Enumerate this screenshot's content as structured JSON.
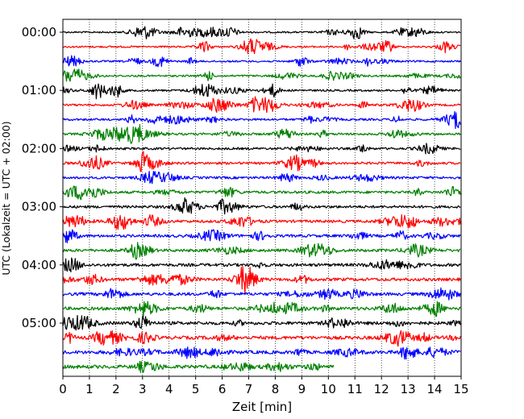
{
  "chart_data": {
    "type": "line",
    "title": "",
    "xlabel": "Zeit  [min]",
    "ylabel": "UTC (Lokalzeit = UTC + 02:00)",
    "xlim": [
      0,
      15
    ],
    "x_ticks": [
      "0",
      "1",
      "2",
      "3",
      "4",
      "5",
      "6",
      "7",
      "8",
      "9",
      "10",
      "11",
      "12",
      "13",
      "14",
      "15"
    ],
    "y_ticks": [
      "00:00",
      "01:00",
      "02:00",
      "03:00",
      "04:00",
      "05:00"
    ],
    "grid": "vertical dotted",
    "legend": "none",
    "colors": [
      "#000000",
      "#ff0000",
      "#0000ff",
      "#008000"
    ],
    "series": [
      {
        "start": "00:00",
        "end_min": 15,
        "color": "#000000"
      },
      {
        "start": "00:15",
        "end_min": 15,
        "color": "#ff0000"
      },
      {
        "start": "00:30",
        "end_min": 15,
        "color": "#0000ff"
      },
      {
        "start": "00:45",
        "end_min": 15,
        "color": "#008000"
      },
      {
        "start": "01:00",
        "end_min": 15,
        "color": "#000000"
      },
      {
        "start": "01:15",
        "end_min": 15,
        "color": "#ff0000"
      },
      {
        "start": "01:30",
        "end_min": 15,
        "color": "#0000ff"
      },
      {
        "start": "01:45",
        "end_min": 15,
        "color": "#008000"
      },
      {
        "start": "02:00",
        "end_min": 15,
        "color": "#000000"
      },
      {
        "start": "02:15",
        "end_min": 15,
        "color": "#ff0000"
      },
      {
        "start": "02:30",
        "end_min": 15,
        "color": "#0000ff"
      },
      {
        "start": "02:45",
        "end_min": 15,
        "color": "#008000"
      },
      {
        "start": "03:00",
        "end_min": 15,
        "color": "#000000"
      },
      {
        "start": "03:15",
        "end_min": 15,
        "color": "#ff0000"
      },
      {
        "start": "03:30",
        "end_min": 15,
        "color": "#0000ff"
      },
      {
        "start": "03:45",
        "end_min": 15,
        "color": "#008000"
      },
      {
        "start": "04:00",
        "end_min": 15,
        "color": "#000000"
      },
      {
        "start": "04:15",
        "end_min": 15,
        "color": "#ff0000"
      },
      {
        "start": "04:30",
        "end_min": 15,
        "color": "#0000ff"
      },
      {
        "start": "04:45",
        "end_min": 15,
        "color": "#008000"
      },
      {
        "start": "05:00",
        "end_min": 15,
        "color": "#000000"
      },
      {
        "start": "05:15",
        "end_min": 15,
        "color": "#ff0000"
      },
      {
        "start": "05:30",
        "end_min": 15,
        "color": "#0000ff"
      },
      {
        "start": "05:45",
        "end_min": 10.2,
        "color": "#008000"
      }
    ]
  }
}
